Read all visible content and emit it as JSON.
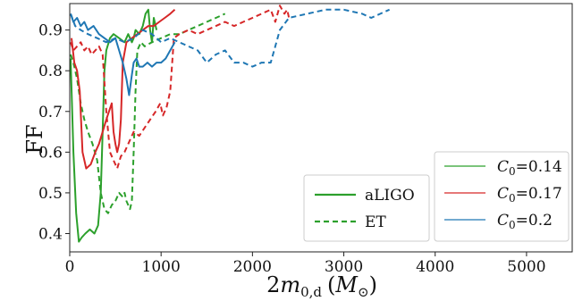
{
  "chart_data": {
    "type": "line",
    "xlabel": "2m_{0,d} (M_⊙)",
    "xlabel_parts": {
      "base": "2",
      "var": "m",
      "sub": "0,d",
      "lparen": "(",
      "mvar": "M",
      "msub": "⊙",
      "rparen": ")"
    },
    "ylabel": "FF",
    "xlim": [
      0,
      5500
    ],
    "ylim": [
      0.355,
      0.965
    ],
    "x_ticks": [
      0,
      1000,
      2000,
      3000,
      4000,
      5000
    ],
    "y_ticks": [
      0.4,
      0.5,
      0.6,
      0.7,
      0.8,
      0.9
    ],
    "tick_labels": {
      "x": [
        "0",
        "1000",
        "2000",
        "3000",
        "4000",
        "5000"
      ],
      "y": [
        "0.4",
        "0.5",
        "0.6",
        "0.7",
        "0.8",
        "0.9"
      ]
    },
    "grid": false,
    "legend_style": {
      "position": "bottom-middle",
      "items": [
        {
          "label": "aLIGO",
          "dash": "solid"
        },
        {
          "label": "ET",
          "dash": "dashed"
        }
      ]
    },
    "legend_color": {
      "position": "bottom-right",
      "items": [
        {
          "var": "C",
          "sub": "0",
          "value": "=0.14",
          "color": "#2ca02c"
        },
        {
          "var": "C",
          "sub": "0",
          "value": "=0.17",
          "color": "#d62728"
        },
        {
          "var": "C",
          "sub": "0",
          "value": "=0.2",
          "color": "#1f77b4"
        }
      ]
    },
    "series": [
      {
        "detector": "aLIGO",
        "C0": 0.14,
        "color": "#2ca02c",
        "dash": "solid",
        "x": [
          10,
          40,
          70,
          100,
          130,
          170,
          220,
          270,
          310,
          340,
          360,
          380,
          400,
          440,
          480,
          540,
          600,
          640,
          680,
          700,
          720,
          760,
          800,
          830,
          860,
          880,
          900,
          920,
          950
        ],
        "y": [
          0.83,
          0.6,
          0.45,
          0.38,
          0.39,
          0.4,
          0.41,
          0.4,
          0.42,
          0.5,
          0.65,
          0.8,
          0.85,
          0.88,
          0.89,
          0.88,
          0.87,
          0.89,
          0.87,
          0.88,
          0.9,
          0.89,
          0.91,
          0.94,
          0.95,
          0.9,
          0.87,
          0.93,
          0.9
        ]
      },
      {
        "detector": "ET",
        "C0": 0.14,
        "color": "#2ca02c",
        "dash": "dashed",
        "x": [
          10,
          40,
          80,
          120,
          160,
          200,
          250,
          300,
          340,
          380,
          420,
          460,
          500,
          540,
          580,
          600,
          620,
          640,
          660,
          680,
          700,
          720,
          740,
          780,
          820,
          900,
          1000,
          1100,
          1200,
          1300,
          1400,
          1500,
          1600,
          1700
        ],
        "y": [
          0.84,
          0.82,
          0.78,
          0.72,
          0.68,
          0.65,
          0.62,
          0.58,
          0.5,
          0.46,
          0.45,
          0.47,
          0.48,
          0.5,
          0.49,
          0.5,
          0.48,
          0.47,
          0.46,
          0.48,
          0.6,
          0.75,
          0.85,
          0.87,
          0.86,
          0.87,
          0.88,
          0.89,
          0.89,
          0.9,
          0.91,
          0.92,
          0.93,
          0.94
        ]
      },
      {
        "detector": "aLIGO",
        "C0": 0.17,
        "color": "#d62728",
        "dash": "solid",
        "x": [
          20,
          50,
          80,
          110,
          140,
          180,
          230,
          280,
          320,
          360,
          400,
          430,
          460,
          480,
          500,
          520,
          540,
          560,
          580,
          620,
          680,
          740,
          800,
          860,
          920,
          980,
          1040,
          1100,
          1150
        ],
        "y": [
          0.88,
          0.82,
          0.8,
          0.75,
          0.6,
          0.56,
          0.57,
          0.6,
          0.62,
          0.65,
          0.68,
          0.7,
          0.72,
          0.65,
          0.62,
          0.6,
          0.62,
          0.68,
          0.82,
          0.87,
          0.88,
          0.89,
          0.9,
          0.91,
          0.91,
          0.92,
          0.93,
          0.94,
          0.95
        ]
      },
      {
        "detector": "ET",
        "C0": 0.17,
        "color": "#d62728",
        "dash": "dashed",
        "x": [
          10,
          40,
          80,
          120,
          160,
          200,
          240,
          280,
          320,
          360,
          400,
          440,
          480,
          520,
          560,
          600,
          640,
          700,
          760,
          820,
          880,
          940,
          990,
          1020,
          1060,
          1100,
          1140,
          1200,
          1300,
          1400,
          1500,
          1600,
          1700,
          1800,
          1900,
          2000,
          2100,
          2200,
          2250,
          2300,
          2350,
          2380,
          2400
        ],
        "y": [
          0.87,
          0.85,
          0.86,
          0.87,
          0.85,
          0.86,
          0.84,
          0.85,
          0.86,
          0.84,
          0.7,
          0.6,
          0.58,
          0.56,
          0.59,
          0.6,
          0.62,
          0.65,
          0.64,
          0.66,
          0.68,
          0.7,
          0.72,
          0.69,
          0.71,
          0.75,
          0.88,
          0.89,
          0.9,
          0.89,
          0.9,
          0.91,
          0.92,
          0.91,
          0.92,
          0.93,
          0.94,
          0.95,
          0.92,
          0.96,
          0.94,
          0.95,
          0.93
        ]
      },
      {
        "detector": "aLIGO",
        "C0": 0.2,
        "color": "#1f77b4",
        "dash": "solid",
        "x": [
          10,
          40,
          80,
          120,
          160,
          200,
          260,
          320,
          380,
          440,
          500,
          540,
          580,
          620,
          650,
          680,
          700,
          730,
          760,
          800,
          850,
          900,
          950,
          1000,
          1050,
          1100,
          1150
        ],
        "y": [
          0.94,
          0.92,
          0.93,
          0.91,
          0.92,
          0.9,
          0.91,
          0.89,
          0.88,
          0.87,
          0.88,
          0.85,
          0.82,
          0.78,
          0.74,
          0.79,
          0.82,
          0.83,
          0.81,
          0.81,
          0.82,
          0.81,
          0.82,
          0.82,
          0.83,
          0.85,
          0.87
        ]
      },
      {
        "detector": "ET",
        "C0": 0.2,
        "color": "#1f77b4",
        "dash": "dashed",
        "x": [
          10,
          60,
          120,
          200,
          300,
          400,
          500,
          600,
          700,
          800,
          900,
          1000,
          1100,
          1200,
          1300,
          1400,
          1500,
          1600,
          1700,
          1800,
          1900,
          2000,
          2100,
          2200,
          2300,
          2400,
          2600,
          2800,
          3000,
          3200,
          3300,
          3400,
          3500
        ],
        "y": [
          0.94,
          0.91,
          0.9,
          0.89,
          0.88,
          0.87,
          0.88,
          0.87,
          0.88,
          0.9,
          0.89,
          0.87,
          0.88,
          0.87,
          0.86,
          0.85,
          0.82,
          0.84,
          0.85,
          0.82,
          0.82,
          0.81,
          0.82,
          0.82,
          0.9,
          0.93,
          0.94,
          0.95,
          0.95,
          0.94,
          0.93,
          0.94,
          0.95
        ]
      }
    ]
  }
}
